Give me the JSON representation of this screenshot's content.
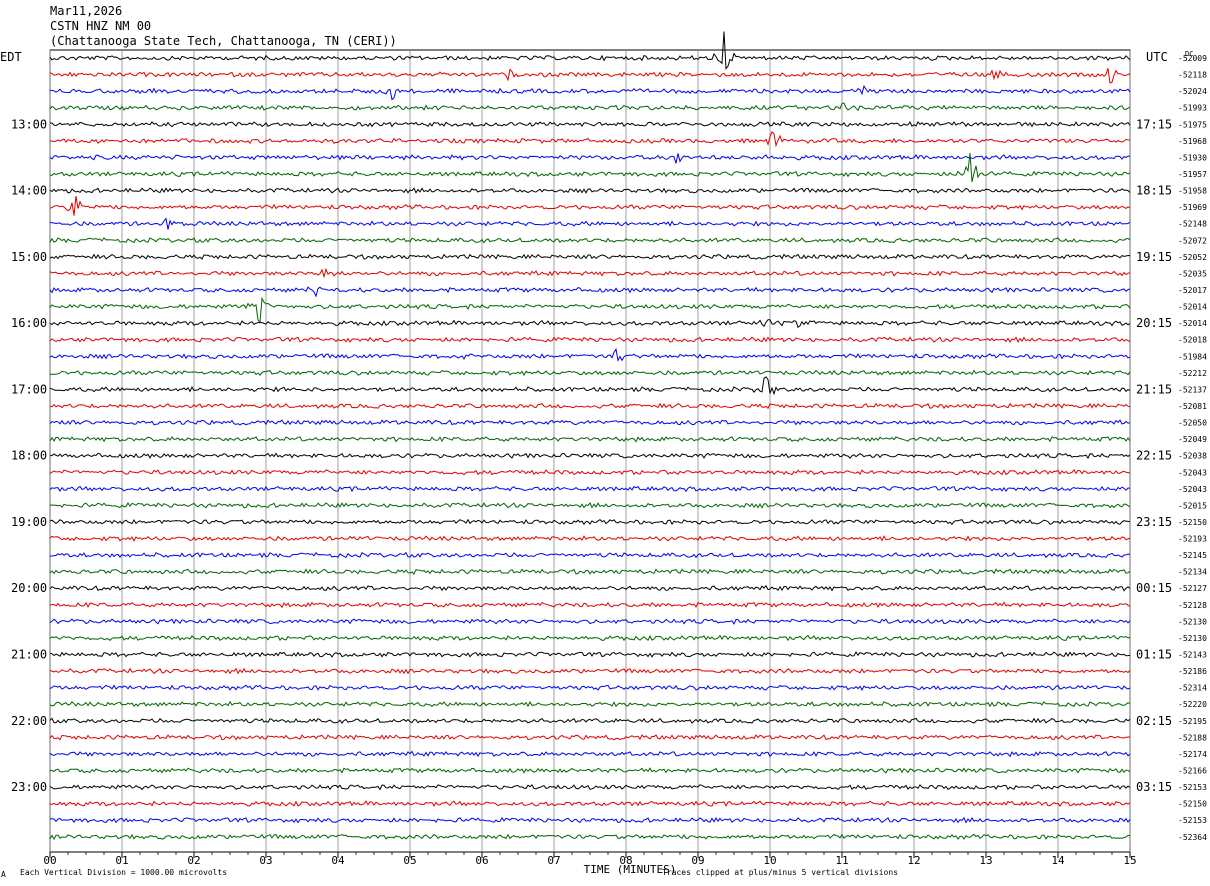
{
  "header": {
    "date": "Mar11,2026",
    "station": "CSTN HNZ NM 00",
    "location": "(Chattanooga State Tech, Chattanooga, TN (CERI))"
  },
  "left_tz": "EDT",
  "right_tz": "UTC",
  "dc_label": "DC",
  "footer": {
    "scale": "Each Vertical Division = 1000.00 microvolts",
    "clip": "Traces clipped at plus/minus 5 vertical divisions",
    "corner": "A"
  },
  "chart_data": {
    "type": "line",
    "xlabel": "TIME (MINUTES)",
    "x_ticks": [
      "00",
      "01",
      "02",
      "03",
      "04",
      "05",
      "06",
      "07",
      "08",
      "09",
      "10",
      "11",
      "12",
      "13",
      "14",
      "15"
    ],
    "xlim": [
      0,
      15
    ],
    "trace_colors": [
      "#000000",
      "#dd0000",
      "#0000ee",
      "#006400"
    ],
    "left_hour_labels": [
      "13:00",
      "14:00",
      "15:00",
      "16:00",
      "17:00",
      "18:00",
      "19:00",
      "20:00",
      "21:00",
      "22:00",
      "23:00"
    ],
    "right_hour_labels": [
      "17:15",
      "18:15",
      "19:15",
      "20:15",
      "21:15",
      "22:15",
      "23:15",
      "00:15",
      "01:15",
      "02:15",
      "03:15"
    ],
    "dc_offsets": [
      -52009,
      -52118,
      -52024,
      -51993,
      -51975,
      -51968,
      -51930,
      -51957,
      -51958,
      -51969,
      -52148,
      -52072,
      -52052,
      -52035,
      -52017,
      -52014,
      -52014,
      -52018,
      -51984,
      -52212,
      -52137,
      -52081,
      -52050,
      -52049,
      -52038,
      -52043,
      -52043,
      -52015,
      -52150,
      -52193,
      -52145,
      -52134,
      -52127,
      -52128,
      -52130,
      -52130,
      -52143,
      -52186,
      -52314,
      -52220,
      -52195,
      -52188,
      -52174,
      -52166,
      -52153,
      -52150,
      -52153,
      -52364
    ],
    "events": [
      {
        "trace": 0,
        "minute": 9.35,
        "amp": 2.2
      },
      {
        "trace": 1,
        "minute": 6.35,
        "amp": 0.6
      },
      {
        "trace": 1,
        "minute": 13.1,
        "amp": 0.7
      },
      {
        "trace": 1,
        "minute": 14.75,
        "amp": 0.9
      },
      {
        "trace": 2,
        "minute": 4.75,
        "amp": 0.7
      },
      {
        "trace": 2,
        "minute": 11.3,
        "amp": 0.5
      },
      {
        "trace": 3,
        "minute": 11.05,
        "amp": 0.6
      },
      {
        "trace": 4,
        "minute": 11.95,
        "amp": 0.4
      },
      {
        "trace": 5,
        "minute": 10.05,
        "amp": 1.0
      },
      {
        "trace": 6,
        "minute": 8.7,
        "amp": 0.5
      },
      {
        "trace": 6,
        "minute": 10.0,
        "amp": 0.4
      },
      {
        "trace": 7,
        "minute": 12.8,
        "amp": 2.5
      },
      {
        "trace": 9,
        "minute": 0.35,
        "amp": 1.0
      },
      {
        "trace": 10,
        "minute": 1.65,
        "amp": 1.0
      },
      {
        "trace": 13,
        "minute": 3.85,
        "amp": 0.7
      },
      {
        "trace": 14,
        "minute": 3.7,
        "amp": 0.5
      },
      {
        "trace": 15,
        "minute": 2.9,
        "amp": 2.0
      },
      {
        "trace": 16,
        "minute": 10.4,
        "amp": 0.5
      },
      {
        "trace": 16,
        "minute": 9.95,
        "amp": 0.5
      },
      {
        "trace": 18,
        "minute": 7.9,
        "amp": 1.0
      },
      {
        "trace": 18,
        "minute": 5.7,
        "amp": 0.4
      },
      {
        "trace": 20,
        "minute": 9.95,
        "amp": 1.2
      },
      {
        "trace": 20,
        "minute": 3.45,
        "amp": 0.6
      }
    ]
  }
}
